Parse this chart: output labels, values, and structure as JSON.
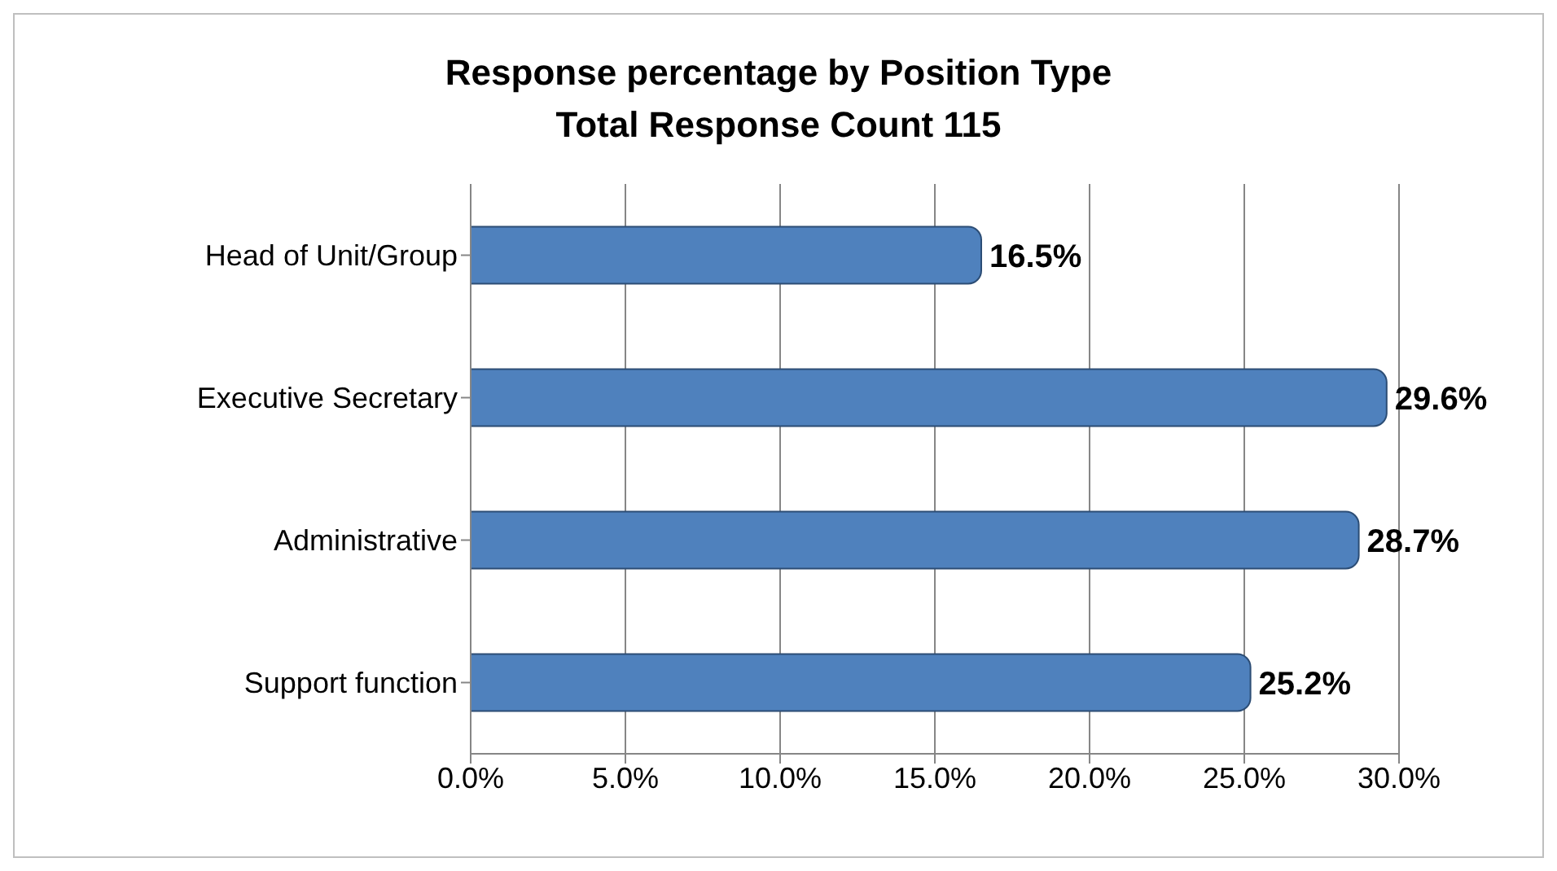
{
  "chart_data": {
    "type": "bar",
    "orientation": "horizontal",
    "title": "Response percentage by Position Type",
    "subtitle": "Total Response Count 115",
    "categories": [
      "Head of Unit/Group",
      "Executive Secretary",
      "Administrative",
      "Support function"
    ],
    "values": [
      16.5,
      29.6,
      28.7,
      25.2
    ],
    "value_labels": [
      "16.5%",
      "29.6%",
      "28.7%",
      "25.2%"
    ],
    "color": "#4f81bd",
    "xlim": [
      0,
      30
    ],
    "xticks": [
      {
        "value": 0,
        "label": "0.0%"
      },
      {
        "value": 5,
        "label": "5.0%"
      },
      {
        "value": 10,
        "label": "10.0%"
      },
      {
        "value": 15,
        "label": "15.0%"
      },
      {
        "value": 20,
        "label": "20.0%"
      },
      {
        "value": 25,
        "label": "25.0%"
      },
      {
        "value": 30,
        "label": "30.0%"
      }
    ],
    "grid": "x",
    "legend": false
  }
}
